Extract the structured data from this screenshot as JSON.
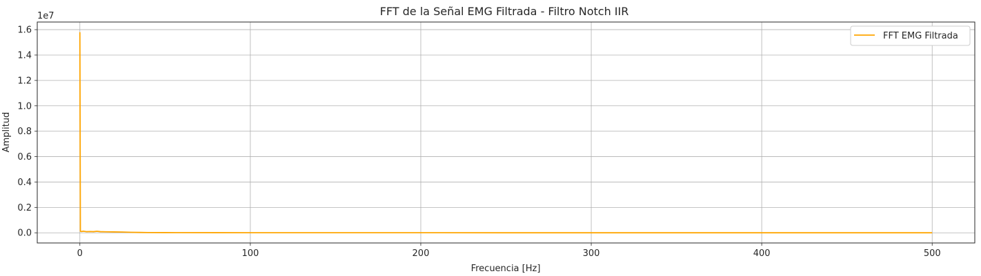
{
  "chart_data": {
    "type": "line",
    "title": "FFT de la Señal EMG Filtrada - Filtro Notch IIR",
    "xlabel": "Frecuencia [Hz]",
    "ylabel": "Amplitud",
    "offset_label": "1e7",
    "xlim": [
      -25,
      525
    ],
    "ylim": [
      -0.08,
      1.66
    ],
    "xticks": [
      0,
      100,
      200,
      300,
      400,
      500
    ],
    "xtick_labels": [
      "0",
      "100",
      "200",
      "300",
      "400",
      "500"
    ],
    "yticks": [
      0.0,
      0.2,
      0.4,
      0.6,
      0.8,
      1.0,
      1.2,
      1.4,
      1.6
    ],
    "ytick_labels": [
      "0.0",
      "0.2",
      "0.4",
      "0.6",
      "0.8",
      "1.0",
      "1.2",
      "1.4",
      "1.6"
    ],
    "grid": true,
    "legend_position": "top-right",
    "series": [
      {
        "name": "FFT EMG Filtrada",
        "color": "#ffa500",
        "x": [
          0,
          0.3,
          1,
          2,
          4,
          6,
          8,
          10,
          12,
          15,
          20,
          25,
          30,
          35,
          40,
          50,
          60,
          80,
          100,
          150,
          200,
          250,
          300,
          350,
          400,
          450,
          500
        ],
        "y": [
          1.58,
          0.012,
          0.01,
          0.013,
          0.009,
          0.01,
          0.009,
          0.012,
          0.009,
          0.008,
          0.007,
          0.006,
          0.004,
          0.003,
          0.002,
          0.0015,
          0.0012,
          0.001,
          0.0008,
          0.0006,
          0.0005,
          0.0004,
          0.0004,
          0.0003,
          0.0003,
          0.0002,
          0.0002
        ]
      }
    ]
  }
}
